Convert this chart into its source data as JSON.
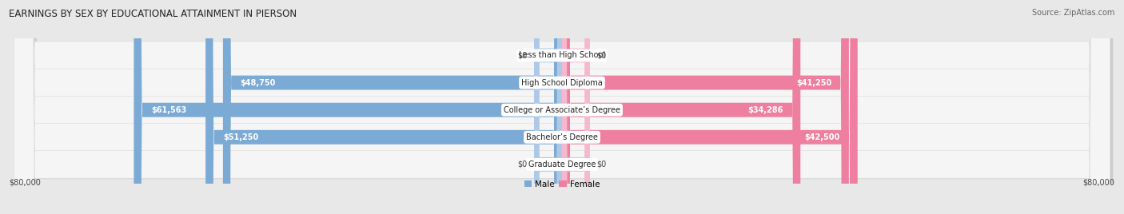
{
  "title": "EARNINGS BY SEX BY EDUCATIONAL ATTAINMENT IN PIERSON",
  "source": "Source: ZipAtlas.com",
  "categories": [
    "Less than High School",
    "High School Diploma",
    "College or Associate’s Degree",
    "Bachelor’s Degree",
    "Graduate Degree"
  ],
  "male_values": [
    0,
    48750,
    61563,
    51250,
    0
  ],
  "female_values": [
    0,
    41250,
    34286,
    42500,
    0
  ],
  "male_labels": [
    "$0",
    "$48,750",
    "$61,563",
    "$51,250",
    "$0"
  ],
  "female_labels": [
    "$0",
    "$41,250",
    "$34,286",
    "$42,500",
    "$0"
  ],
  "male_color": "#7baad4",
  "female_color": "#ee7fa0",
  "male_color_light": "#aec9e8",
  "female_color_light": "#f5b8cc",
  "axis_max": 80000,
  "axis_label_left": "$80,000",
  "axis_label_right": "$80,000",
  "bg_color": "#e8e8e8",
  "row_bg_color": "#f5f5f5",
  "title_fontsize": 8.5,
  "source_fontsize": 7,
  "label_fontsize": 7,
  "category_fontsize": 7,
  "legend_fontsize": 7.5,
  "stub_value": 4000
}
